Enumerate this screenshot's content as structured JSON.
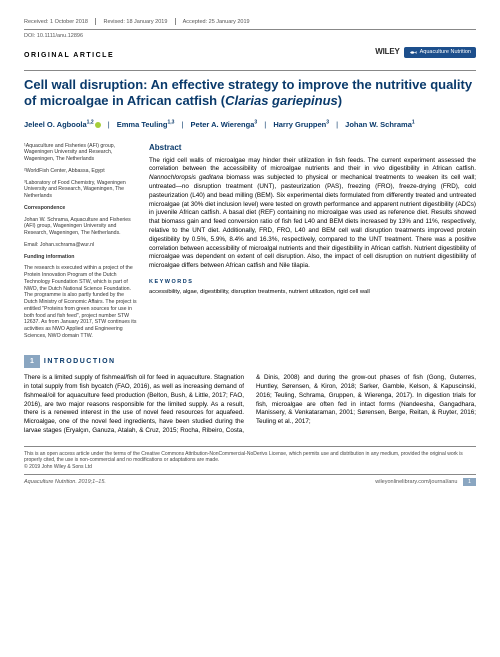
{
  "meta": {
    "received": "Received: 1 October 2018",
    "revised": "Revised: 18 January 2019",
    "accepted": "Accepted: 25 January 2019",
    "doi": "DOI: 10.1111/anu.12896"
  },
  "articleType": "ORIGINAL ARTICLE",
  "publisher": "WILEY",
  "journalBadge": "Aquaculture Nutrition",
  "title_main": "Cell wall disruption: An effective strategy to improve the nutritive quality of microalgae in African catfish (",
  "title_species": "Clarias gariepinus",
  "title_end": ")",
  "authors": [
    {
      "name": "Jeleel O. Agboola",
      "aff": "1,2",
      "orcid": true
    },
    {
      "name": "Emma Teuling",
      "aff": "1,3"
    },
    {
      "name": "Peter A. Wierenga",
      "aff": "3"
    },
    {
      "name": "Harry Gruppen",
      "aff": "3"
    },
    {
      "name": "Johan W. Schrama",
      "aff": "1"
    }
  ],
  "affiliations": {
    "a1": "¹Aquaculture and Fisheries (AFI) group, Wageningen University and Research, Wageningen, The Netherlands",
    "a2": "²WorldFish Center, Abbassa, Egypt",
    "a3": "³Laboratory of Food Chemistry, Wageningen University and Research, Wageningen, The Netherlands",
    "corr_label": "Correspondence",
    "corr": "Johan W. Schrama, Aquaculture and Fisheries (AFI) group, Wageningen University and Research, Wageningen, The Netherlands.",
    "email": "Email: Johan.schrama@wur.nl",
    "fund_label": "Funding information",
    "fund": "The research is executed within a project of the Protein Innovation Program of the Dutch Technology Foundation STW, which is part of NWO, the Dutch National Science Foundation. The programme is also partly funded by the Dutch Ministry of Economic Affairs. The project is entitled \"Proteins from green sources for use in both food and fish feed\", project number STW 12637. As from January 2017, STW continues its activities as NWO Applied and Engineering Sciences, NWO domain TTW."
  },
  "abstract_label": "Abstract",
  "abstract": "The rigid cell walls of microalgae may hinder their utilization in fish feeds. The current experiment assessed the correlation between the accessibility of microalgae nutrients and their in vivo digestibility in African catfish. <i>Nannochloropsis gaditana</i> biomass was subjected to physical or mechanical treatments to weaken its cell wall; untreated—no disruption treatment (UNT), pasteurization (PAS), freezing (FRO), freeze-drying (FRD), cold pasteurization (L40) and bead milling (BEM). Six experimental diets formulated from differently treated and untreated microalgae (at 30% diet inclusion level) were tested on growth performance and apparent nutrient digestibility (ADCs) in juvenile African catfish. A basal diet (REF) containing no microalgae was used as reference diet. Results showed that biomass gain and feed conversion ratio of fish fed L40 and BEM diets increased by 13% and 11%, respectively, relative to the UNT diet. Additionally, FRD, FRO, L40 and BEM cell wall disruption treatments improved protein digestibility by 0.5%, 5.9%, 8.4% and 16.3%, respectively, compared to the UNT treatment. There was a positive correlation between accessibility of microalgal nutrients and their digestibility in African catfish. Nutrient digestibility of microalgae was dependent on extent of cell disruption. Also, the impact of cell disruption on nutrient digestibility of microalgae differs between African catfish and Nile tilapia.",
  "keywords_label": "KEYWORDS",
  "keywords": "accessibility, algae, digestibility, disruption treatments, nutrient utilization, rigid cell wall",
  "section1_num": "1",
  "section1_title": "INTRODUCTION",
  "intro": "There is a limited supply of fishmeal/fish oil for feed in aquaculture. Stagnation in total supply from fish bycatch (FAO, 2016), as well as increasing demand of fishmeal/oil for aquaculture feed production (Belton, Bush, & Little, 2017; FAO, 2016), are two major reasons responsible for the limited supply. As a result, there is a renewed interest in the use of novel feed resources for aquafeed. Microalgae, one of the novel feed ingredients, have been studied during the larvae stages (Eryalçın, Ganuza, Atalah, & Cruz, 2015; Rocha, Ribeiro, Costa, & Dinis, 2008) and during the grow-out phases of fish (Gong, Guterres, Huntley, Sørensen, & Kiron, 2018; Sarker, Gamble, Kelson, & Kapuscinski, 2016; Teuling, Schrama, Gruppen, & Wierenga, 2017). In digestion trials for fish, microalgae are often fed in intact forms (Nandeesha, Gangadhara, Manissery, & Venkataraman, 2001; Sørensen, Berge, Reitan, & Ruyter, 2016; Teuling et al., 2017;",
  "license": "This is an open access article under the terms of the Creative Commons Attribution-NonCommercial-NoDerivs License, which permits use and distribution in any medium, provided the original work is properly cited, the use is non-commercial and no modifications or adaptations are made.",
  "copyright": "© 2019 John Wiley & Sons Ltd",
  "footer_left": "Aquaculture Nutrition. 2019;1–15.",
  "footer_right": "wileyonlinelibrary.com/journal/anu",
  "page_number": "1",
  "colors": {
    "heading_blue": "#0a3a6b",
    "bar_blue": "#8aa6c1",
    "badge_blue": "#1d4f8c",
    "orcid_green": "#a6ce39",
    "text_gray": "#555555"
  }
}
